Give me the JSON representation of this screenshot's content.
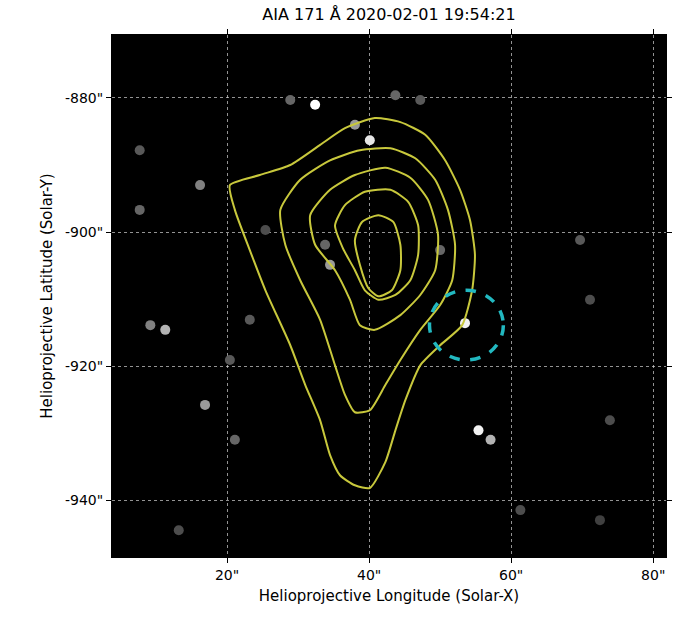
{
  "chart_data": {
    "type": "contour",
    "title": "AIA 171 Å 2020-02-01 19:54:21",
    "x_label": "Helioprojective Longitude (Solar-X)",
    "y_label": "Helioprojective Latitude (Solar-Y)",
    "xlim": [
      3.8,
      81.8
    ],
    "ylim": [
      -948.5,
      -870.6
    ],
    "xticks": [
      {
        "value": 20,
        "label": "20\""
      },
      {
        "value": 40,
        "label": "40\""
      },
      {
        "value": 60,
        "label": "60\""
      },
      {
        "value": 80,
        "label": "80\""
      }
    ],
    "yticks": [
      {
        "value": -940,
        "label": "-940\""
      },
      {
        "value": -920,
        "label": "-920\""
      },
      {
        "value": -900,
        "label": "-900\""
      },
      {
        "value": -880,
        "label": "-880\""
      }
    ],
    "grid": true,
    "color": "#c8c83c",
    "contours": [
      {
        "x": [
          20.4,
          24.6,
          28.9,
          33.1,
          36.6,
          40.8,
          44.4,
          47.9,
          50.7,
          52.8,
          54.2,
          54.9,
          54.5,
          53.1,
          50.0,
          47.2,
          45.1,
          43.7,
          42.3,
          40.1,
          38.0,
          35.9,
          34.5,
          33.1,
          31.0,
          28.9,
          25.4,
          23.2,
          21.1
        ],
        "y": [
          -893.0,
          -891.5,
          -890.0,
          -887.0,
          -884.5,
          -883.0,
          -883.6,
          -885.5,
          -889.3,
          -893.7,
          -898.2,
          -903.4,
          -908.7,
          -913.9,
          -916.9,
          -919.9,
          -925.1,
          -929.6,
          -934.3,
          -938.2,
          -937.8,
          -936.3,
          -933.3,
          -928.1,
          -922.8,
          -916.9,
          -908.7,
          -902.7,
          -896.7
        ]
      },
      {
        "x": [
          27.5,
          30.3,
          34.5,
          38.7,
          43.0,
          46.5,
          49.3,
          51.1,
          52.1,
          51.7,
          50.0,
          47.2,
          44.4,
          42.3,
          40.1,
          38.0,
          36.6,
          35.2,
          33.1,
          30.3,
          28.2
        ],
        "y": [
          -896.7,
          -892.2,
          -889.3,
          -887.8,
          -887.5,
          -889.0,
          -892.2,
          -896.7,
          -901.9,
          -907.2,
          -910.9,
          -914.6,
          -919.1,
          -922.8,
          -926.6,
          -926.9,
          -924.3,
          -919.9,
          -913.1,
          -907.2,
          -901.9
        ]
      },
      {
        "x": [
          31.7,
          34.5,
          38.0,
          42.3,
          45.8,
          48.3,
          49.7,
          49.3,
          47.2,
          44.4,
          40.8,
          38.7,
          37.3,
          35.2,
          32.4
        ],
        "y": [
          -897.5,
          -893.7,
          -891.5,
          -890.4,
          -891.9,
          -895.2,
          -900.4,
          -905.7,
          -909.4,
          -912.4,
          -914.6,
          -913.9,
          -910.1,
          -905.7,
          -901.9
        ]
      },
      {
        "x": [
          35.2,
          36.6,
          39.4,
          43.0,
          45.5,
          46.9,
          46.9,
          45.8,
          43.7,
          41.3,
          39.4,
          38.0,
          36.3
        ],
        "y": [
          -899.0,
          -896.0,
          -894.0,
          -893.7,
          -895.5,
          -899.0,
          -903.4,
          -907.2,
          -909.4,
          -910.1,
          -908.7,
          -905.7,
          -902.4
        ]
      },
      {
        "x": [
          38.0,
          39.0,
          41.3,
          43.4,
          44.4,
          44.4,
          43.2,
          41.3,
          39.9,
          38.7
        ],
        "y": [
          -901.2,
          -898.5,
          -897.5,
          -898.5,
          -901.9,
          -905.7,
          -908.7,
          -909.6,
          -908.4,
          -904.9
        ]
      }
    ],
    "circle": {
      "x": 53.7,
      "y": -913.9,
      "radius": 5.2,
      "color": "#22b8c0",
      "line_style": "dashed"
    },
    "features": {
      "x": [
        32.4,
        40.1,
        38.0,
        53.5,
        55.4,
        57.1,
        11.3,
        9.2,
        16.9,
        16.2,
        7.7,
        34.5,
        33.8,
        50.0,
        69.7,
        71.1,
        73.9,
        21.1,
        28.9,
        47.2,
        43.7,
        25.4,
        13.2,
        61.3,
        7.7,
        72.5,
        23.2,
        20.4
      ],
      "y": [
        -881.0,
        -886.3,
        -884.0,
        -913.6,
        -929.6,
        -931.0,
        -914.6,
        -913.9,
        -925.8,
        -893.0,
        -896.7,
        -904.9,
        -901.9,
        -902.7,
        -901.2,
        -910.1,
        -928.1,
        -931.0,
        -880.3,
        -880.3,
        -879.6,
        -899.7,
        -944.5,
        -941.5,
        -887.8,
        -943.0,
        -913.1,
        -919.1
      ],
      "brightness": [
        1.0,
        0.9,
        0.6,
        0.95,
        0.95,
        0.7,
        0.7,
        0.5,
        0.6,
        0.5,
        0.4,
        0.6,
        0.4,
        0.4,
        0.35,
        0.3,
        0.3,
        0.4,
        0.4,
        0.35,
        0.4,
        0.3,
        0.3,
        0.3,
        0.35,
        0.25,
        0.35,
        0.35
      ]
    },
    "brightness_range": [
      0,
      1
    ]
  }
}
